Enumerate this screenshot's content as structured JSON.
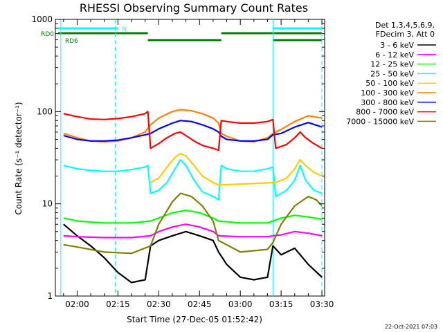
{
  "chart_data": {
    "type": "line",
    "title": "RHESSI Observing Summary Count Rates",
    "xlabel": "Start Time (27-Dec-05 01:52:42)",
    "ylabel": "Count Rate (s⁻¹ detector⁻¹)",
    "y_scale": "log",
    "ylim": [
      1,
      1000
    ],
    "y_ticks": [
      {
        "value": 1,
        "label": "1"
      },
      {
        "value": 10,
        "label": "10"
      },
      {
        "value": 100,
        "label": "100"
      },
      {
        "value": 1000,
        "label": "1000"
      }
    ],
    "xlim": [
      "01:52:42",
      "03:31:00"
    ],
    "x_ticks": [
      "02:00",
      "02:15",
      "02:30",
      "02:45",
      "03:00",
      "03:15",
      "03:30"
    ],
    "grid": false,
    "legend_position": "right",
    "legend_header": [
      "Det 1,3,4,5,6,9,",
      "FDecim 3, Att 0"
    ],
    "series": [
      {
        "name": "3 - 6 keV",
        "color": "#000000",
        "key": "s3_6",
        "points": [
          [
            "01:55",
            6.0
          ],
          [
            "02:00",
            4.5
          ],
          [
            "02:05",
            3.5
          ],
          [
            "02:10",
            2.6
          ],
          [
            "02:15",
            1.8
          ],
          [
            "02:20",
            1.4
          ],
          [
            "02:25",
            1.5
          ],
          [
            "02:27",
            3.5
          ],
          [
            "02:30",
            4.0
          ],
          [
            "02:35",
            4.5
          ],
          [
            "02:40",
            5.0
          ],
          [
            "02:45",
            4.5
          ],
          [
            "02:50",
            4.0
          ],
          [
            "02:52",
            3.0
          ],
          [
            "02:55",
            2.2
          ],
          [
            "03:00",
            1.6
          ],
          [
            "03:05",
            1.5
          ],
          [
            "03:10",
            1.6
          ],
          [
            "03:12",
            3.5
          ],
          [
            "03:15",
            2.8
          ],
          [
            "03:20",
            3.3
          ],
          [
            "03:25",
            2.2
          ],
          [
            "03:30",
            1.6
          ]
        ]
      },
      {
        "name": "6 - 12 keV",
        "color": "#ff00ff",
        "key": "s6_12",
        "points": [
          [
            "01:55",
            4.5
          ],
          [
            "02:00",
            4.4
          ],
          [
            "02:10",
            4.3
          ],
          [
            "02:20",
            4.3
          ],
          [
            "02:27",
            4.5
          ],
          [
            "02:30",
            5.0
          ],
          [
            "02:35",
            5.6
          ],
          [
            "02:40",
            6.0
          ],
          [
            "02:45",
            5.6
          ],
          [
            "02:50",
            5.0
          ],
          [
            "02:52",
            4.5
          ],
          [
            "03:00",
            4.4
          ],
          [
            "03:10",
            4.4
          ],
          [
            "03:12",
            4.5
          ],
          [
            "03:15",
            4.6
          ],
          [
            "03:20",
            5.0
          ],
          [
            "03:25",
            4.8
          ],
          [
            "03:30",
            4.5
          ]
        ]
      },
      {
        "name": "12 - 25 keV",
        "color": "#00ff00",
        "key": "s12_25",
        "points": [
          [
            "01:55",
            7.0
          ],
          [
            "02:00",
            6.5
          ],
          [
            "02:10",
            6.2
          ],
          [
            "02:20",
            6.2
          ],
          [
            "02:27",
            6.5
          ],
          [
            "02:30",
            7.0
          ],
          [
            "02:35",
            8.0
          ],
          [
            "02:40",
            8.5
          ],
          [
            "02:45",
            8.0
          ],
          [
            "02:50",
            7.0
          ],
          [
            "02:52",
            6.5
          ],
          [
            "03:00",
            6.2
          ],
          [
            "03:10",
            6.2
          ],
          [
            "03:12",
            6.5
          ],
          [
            "03:15",
            7.0
          ],
          [
            "03:20",
            7.5
          ],
          [
            "03:25",
            7.2
          ],
          [
            "03:30",
            6.8
          ]
        ]
      },
      {
        "name": "25 - 50 keV",
        "color": "#00ffff",
        "key": "s25_50",
        "points": [
          [
            "01:55",
            26
          ],
          [
            "02:00",
            24
          ],
          [
            "02:05",
            23
          ],
          [
            "02:10",
            22.5
          ],
          [
            "02:15",
            22.5
          ],
          [
            "02:20",
            23.5
          ],
          [
            "02:25",
            25
          ],
          [
            "02:26",
            26
          ],
          [
            "02:27",
            13
          ],
          [
            "02:30",
            14
          ],
          [
            "02:33",
            17
          ],
          [
            "02:36",
            24
          ],
          [
            "02:38",
            30
          ],
          [
            "02:40",
            26
          ],
          [
            "02:43",
            18
          ],
          [
            "02:46",
            13.5
          ],
          [
            "02:50",
            12
          ],
          [
            "02:52",
            11
          ],
          [
            "02:53",
            26
          ],
          [
            "02:55",
            24
          ],
          [
            "03:00",
            22.5
          ],
          [
            "03:05",
            22.5
          ],
          [
            "03:10",
            24
          ],
          [
            "03:12",
            25
          ],
          [
            "03:13",
            12
          ],
          [
            "03:17",
            14
          ],
          [
            "03:20",
            18
          ],
          [
            "03:22",
            26
          ],
          [
            "03:24",
            18
          ],
          [
            "03:27",
            14
          ],
          [
            "03:30",
            13
          ]
        ]
      },
      {
        "name": "50 - 100 keV",
        "color": "#ffcc00",
        "key": "s50_100",
        "points": [
          [
            "02:27",
            17
          ],
          [
            "02:30",
            19
          ],
          [
            "02:33",
            25
          ],
          [
            "02:36",
            32
          ],
          [
            "02:38",
            35
          ],
          [
            "02:40",
            33
          ],
          [
            "02:43",
            26
          ],
          [
            "02:46",
            20
          ],
          [
            "02:50",
            17
          ],
          [
            "02:52",
            16
          ],
          [
            "03:13",
            17
          ],
          [
            "03:17",
            19
          ],
          [
            "03:20",
            24
          ],
          [
            "03:22",
            30
          ],
          [
            "03:24",
            26
          ],
          [
            "03:27",
            22
          ],
          [
            "03:30",
            20
          ]
        ]
      },
      {
        "name": "100 - 300 keV",
        "color": "#ff8000",
        "key": "s100_300",
        "points": [
          [
            "01:55",
            58
          ],
          [
            "02:00",
            52
          ],
          [
            "02:05",
            48
          ],
          [
            "02:10",
            47
          ],
          [
            "02:15",
            48
          ],
          [
            "02:20",
            52
          ],
          [
            "02:25",
            60
          ],
          [
            "02:27",
            72
          ],
          [
            "02:30",
            85
          ],
          [
            "02:35",
            100
          ],
          [
            "02:38",
            105
          ],
          [
            "02:42",
            102
          ],
          [
            "02:46",
            95
          ],
          [
            "02:50",
            85
          ],
          [
            "02:52",
            75
          ],
          [
            "02:53",
            58
          ],
          [
            "02:55",
            54
          ],
          [
            "03:00",
            48
          ],
          [
            "03:05",
            47
          ],
          [
            "03:10",
            52
          ],
          [
            "03:12",
            58
          ],
          [
            "03:15",
            64
          ],
          [
            "03:20",
            78
          ],
          [
            "03:25",
            90
          ],
          [
            "03:30",
            85
          ]
        ]
      },
      {
        "name": "300 - 800 keV",
        "color": "#0000ff",
        "key": "s300_800",
        "points": [
          [
            "01:55",
            55
          ],
          [
            "02:00",
            50
          ],
          [
            "02:05",
            48
          ],
          [
            "02:10",
            48
          ],
          [
            "02:15",
            49
          ],
          [
            "02:20",
            52
          ],
          [
            "02:25",
            56
          ],
          [
            "02:27",
            58
          ],
          [
            "02:30",
            65
          ],
          [
            "02:35",
            75
          ],
          [
            "02:38",
            80
          ],
          [
            "02:42",
            78
          ],
          [
            "02:46",
            72
          ],
          [
            "02:50",
            65
          ],
          [
            "02:52",
            60
          ],
          [
            "02:53",
            54
          ],
          [
            "02:55",
            50
          ],
          [
            "03:00",
            48
          ],
          [
            "03:05",
            48
          ],
          [
            "03:10",
            50
          ],
          [
            "03:12",
            56
          ],
          [
            "03:15",
            58
          ],
          [
            "03:20",
            68
          ],
          [
            "03:25",
            76
          ],
          [
            "03:30",
            68
          ]
        ]
      },
      {
        "name": "800 - 7000 keV",
        "color": "#ff0000",
        "key": "s800_7000",
        "points": [
          [
            "01:55",
            95
          ],
          [
            "02:00",
            88
          ],
          [
            "02:05",
            83
          ],
          [
            "02:10",
            82
          ],
          [
            "02:15",
            84
          ],
          [
            "02:20",
            88
          ],
          [
            "02:25",
            95
          ],
          [
            "02:26",
            100
          ],
          [
            "02:27",
            40
          ],
          [
            "02:30",
            45
          ],
          [
            "02:33",
            52
          ],
          [
            "02:36",
            58
          ],
          [
            "02:38",
            60
          ],
          [
            "02:40",
            55
          ],
          [
            "02:43",
            48
          ],
          [
            "02:46",
            43
          ],
          [
            "02:50",
            40
          ],
          [
            "02:52",
            38
          ],
          [
            "02:53",
            80
          ],
          [
            "02:55",
            78
          ],
          [
            "03:00",
            75
          ],
          [
            "03:05",
            75
          ],
          [
            "03:10",
            78
          ],
          [
            "03:12",
            82
          ],
          [
            "03:13",
            40
          ],
          [
            "03:17",
            44
          ],
          [
            "03:20",
            52
          ],
          [
            "03:22",
            60
          ],
          [
            "03:24",
            52
          ],
          [
            "03:27",
            45
          ],
          [
            "03:30",
            40
          ]
        ]
      },
      {
        "name": "7000 - 15000 keV",
        "color": "#808000",
        "key": "s7000_15000",
        "points": [
          [
            "01:55",
            3.6
          ],
          [
            "02:00",
            3.4
          ],
          [
            "02:10",
            3.0
          ],
          [
            "02:20",
            2.9
          ],
          [
            "02:27",
            3.5
          ],
          [
            "02:30",
            6.0
          ],
          [
            "02:35",
            10.5
          ],
          [
            "02:38",
            13.0
          ],
          [
            "02:42",
            12.0
          ],
          [
            "02:46",
            9.5
          ],
          [
            "02:50",
            6.5
          ],
          [
            "02:52",
            4.0
          ],
          [
            "03:00",
            3.0
          ],
          [
            "03:10",
            3.2
          ],
          [
            "03:12",
            3.8
          ],
          [
            "03:15",
            6.0
          ],
          [
            "03:20",
            9.5
          ],
          [
            "03:25",
            12.0
          ],
          [
            "03:28",
            11.0
          ],
          [
            "03:30",
            9.5
          ]
        ]
      }
    ],
    "state_bars": [
      {
        "label": "N",
        "color": "#00ffff",
        "level": "top",
        "segments": [
          [
            "01:53",
            "02:15"
          ],
          [
            "03:12",
            "03:31"
          ]
        ]
      },
      {
        "label": "RD0",
        "color": "#008000",
        "level": "upper",
        "segments": [
          [
            "01:53",
            "02:26"
          ],
          [
            "02:53",
            "03:31"
          ]
        ]
      },
      {
        "label": "RD6",
        "color": "#008000",
        "level": "lower",
        "segments": [
          [
            "02:26",
            "02:53"
          ],
          [
            "03:12",
            "03:31"
          ]
        ]
      }
    ],
    "vertical_markers": {
      "solid": {
        "color": "#00ffff",
        "times": [
          "01:54",
          "03:12"
        ]
      },
      "dashed": {
        "color": "#00ffff",
        "times": [
          "02:14",
          "03:31"
        ]
      }
    },
    "footer_timestamp": "22-Oct-2021 07:03"
  }
}
